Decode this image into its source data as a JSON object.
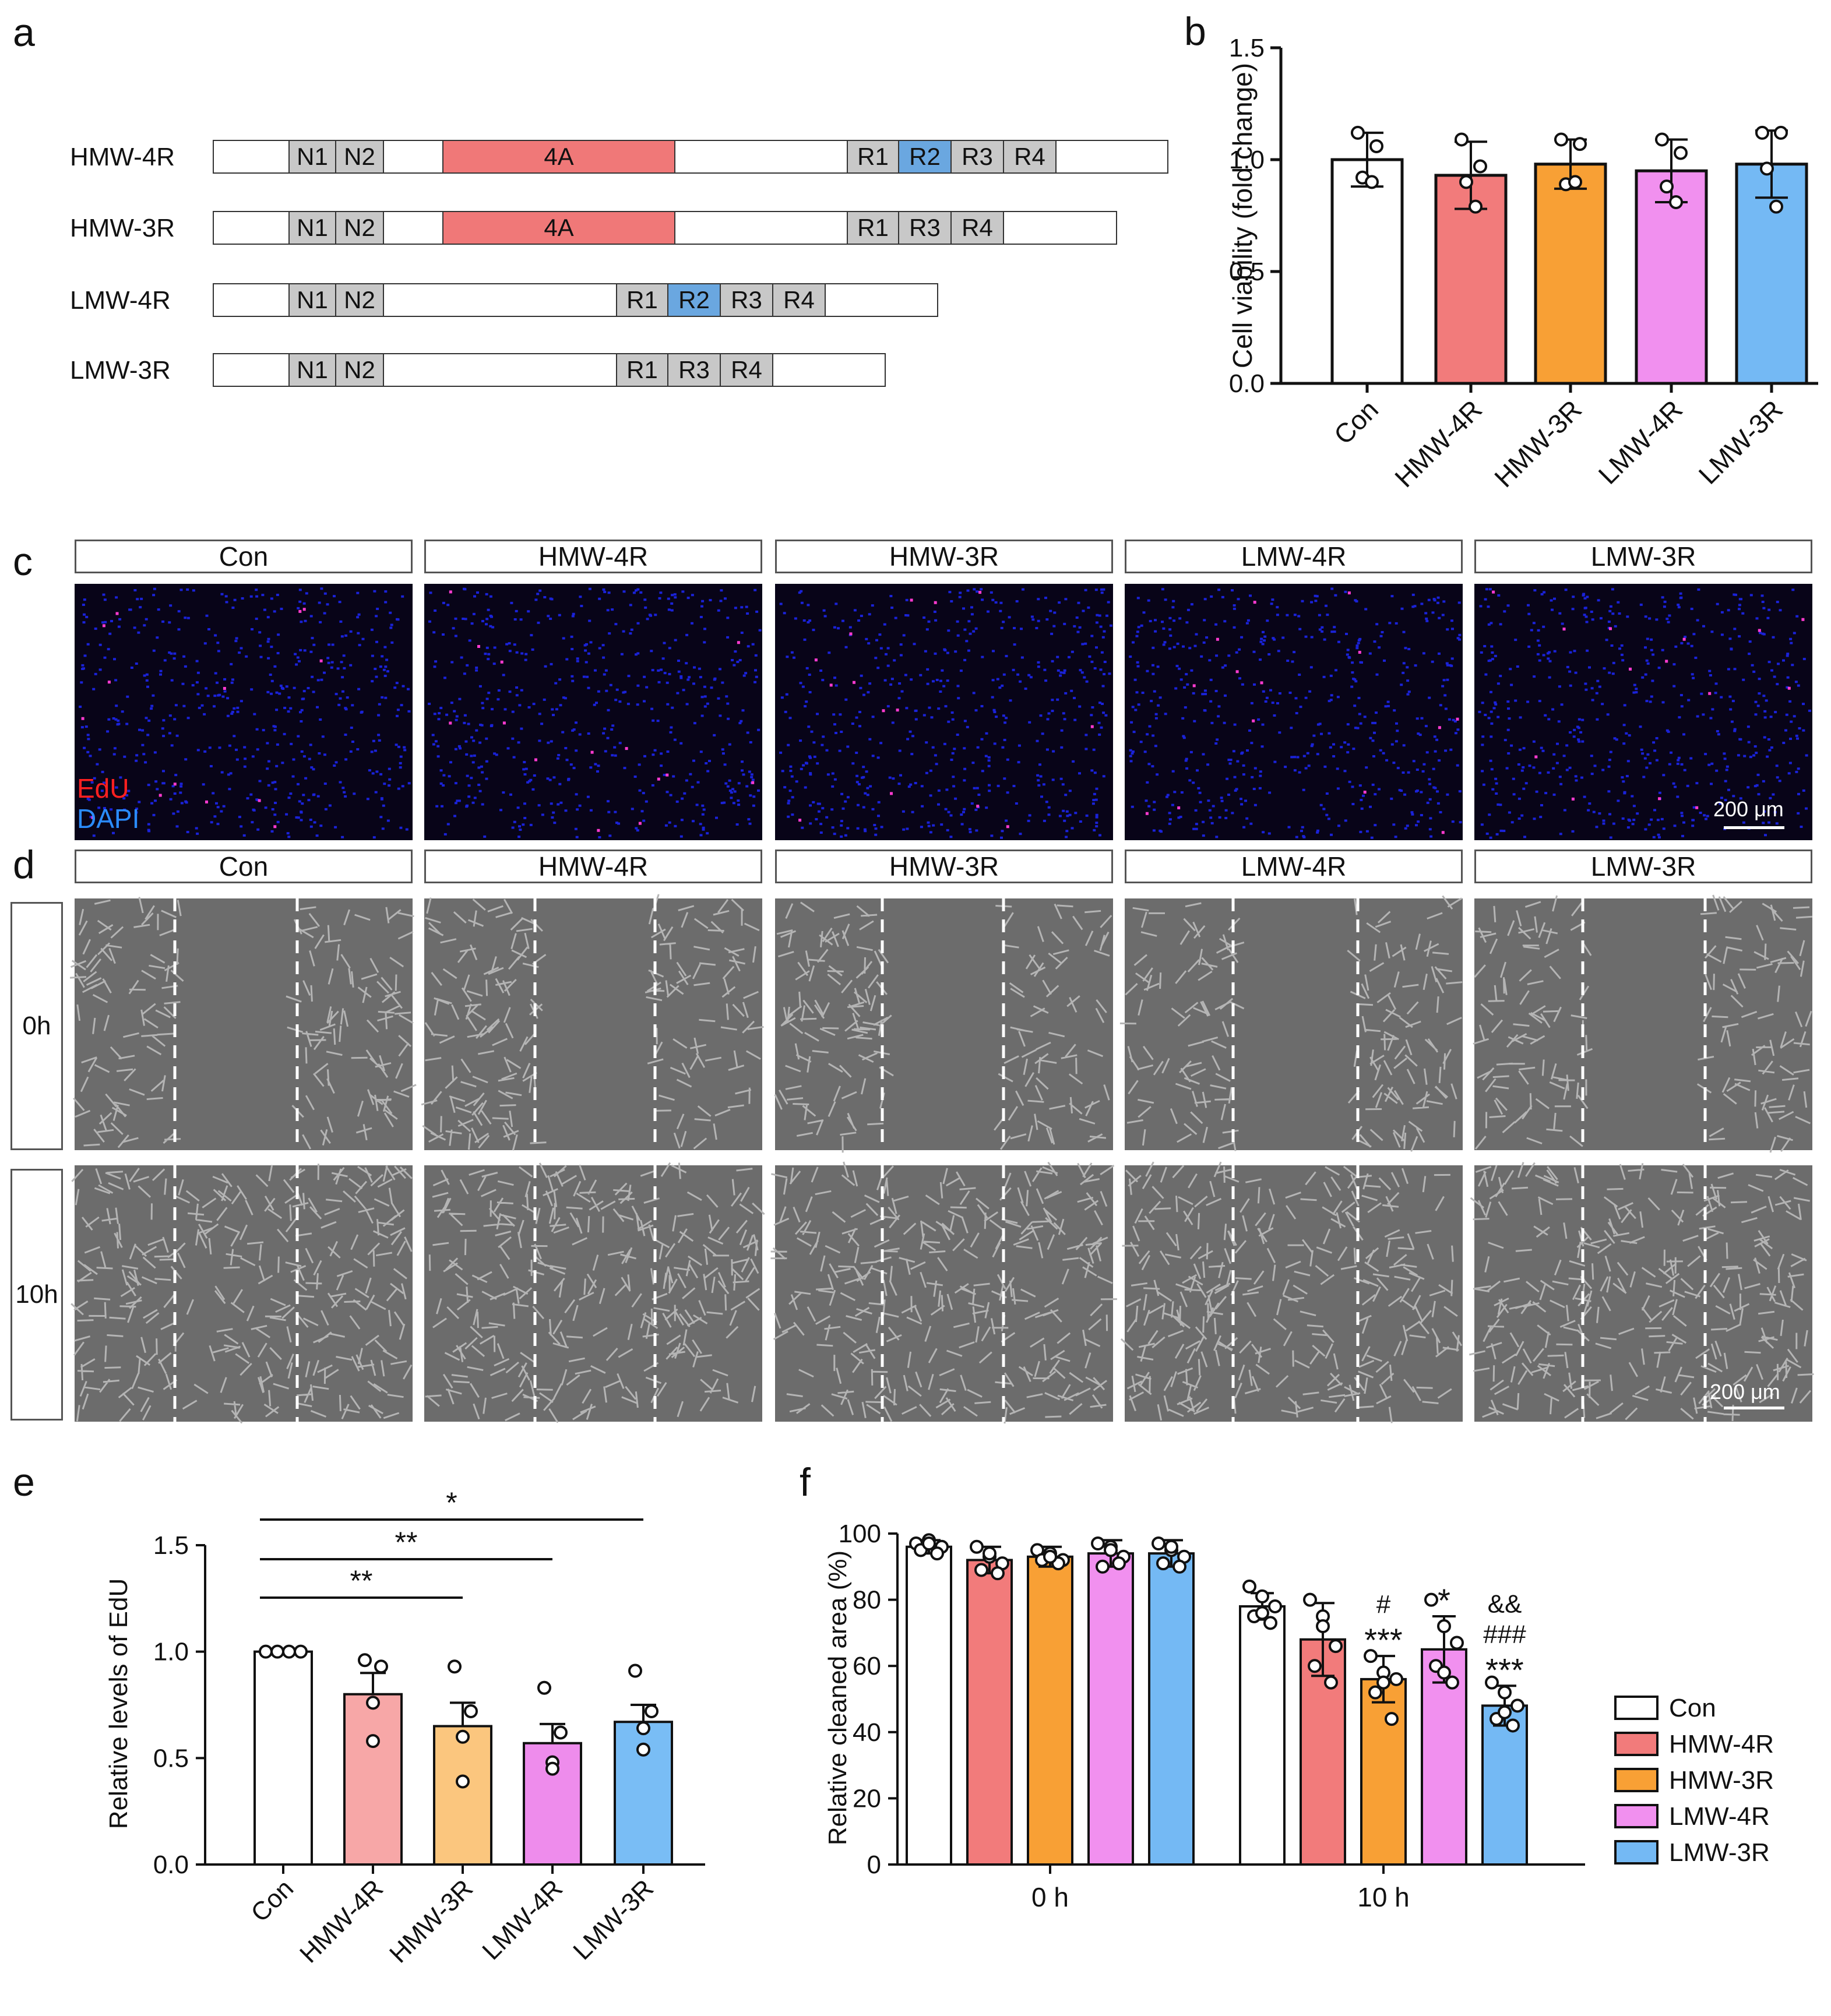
{
  "panel_letters": {
    "a": "a",
    "b": "b",
    "c": "c",
    "d": "d",
    "e": "e",
    "f": "f"
  },
  "colors": {
    "con": "#ffffff",
    "hmw4r": "#f27b7b",
    "hmw3r": "#f8a035",
    "lmw4r": "#f190ef",
    "lmw3r": "#74b9f4",
    "hmw4r_e": "#f7a7a7",
    "hmw3r_e": "#fbc67e",
    "lmw4r_e": "#ee8cec",
    "lmw3r_e": "#79bdf5",
    "domain_grey": "#c8c8c8",
    "domain_blue": "#6aa7e0",
    "domain_red": "#f07878"
  },
  "schema": {
    "rows": [
      {
        "label": "HMW-4R",
        "n1": "N1",
        "n2": "N2",
        "insert": "4A",
        "repeats": [
          "R1",
          "R2",
          "R3",
          "R4"
        ]
      },
      {
        "label": "HMW-3R",
        "n1": "N1",
        "n2": "N2",
        "insert": "4A",
        "repeats": [
          "R1",
          "R3",
          "R4"
        ]
      },
      {
        "label": "LMW-4R",
        "n1": "N1",
        "n2": "N2",
        "repeats": [
          "R1",
          "R2",
          "R3",
          "R4"
        ]
      },
      {
        "label": "LMW-3R",
        "n1": "N1",
        "n2": "N2",
        "repeats": [
          "R1",
          "R3",
          "R4"
        ]
      }
    ]
  },
  "conditions": [
    "Con",
    "HMW-4R",
    "HMW-3R",
    "LMW-4R",
    "LMW-3R"
  ],
  "edu_labels": {
    "edu": "EdU",
    "dapi": "DAPI",
    "scale": "200 μm"
  },
  "wound": {
    "times": [
      "0h",
      "10h"
    ],
    "scale": "200 μm"
  },
  "chart_data": [
    {
      "panel": "b",
      "type": "bar",
      "ylabel": "Cell viability (fold change)",
      "categories": [
        "Con",
        "HMW-4R",
        "HMW-3R",
        "LMW-4R",
        "LMW-3R"
      ],
      "values": [
        1.0,
        0.93,
        0.98,
        0.95,
        0.98
      ],
      "sd": [
        0.12,
        0.15,
        0.11,
        0.14,
        0.15
      ],
      "points": [
        [
          1.12,
          1.06,
          0.92,
          0.9
        ],
        [
          1.09,
          0.97,
          0.9,
          0.79
        ],
        [
          1.09,
          1.07,
          0.89,
          0.9
        ],
        [
          1.09,
          1.03,
          0.88,
          0.81
        ],
        [
          1.12,
          1.12,
          0.96,
          0.79
        ]
      ],
      "ylim": [
        0,
        1.5
      ],
      "yticks": [
        "0.0",
        "0.5",
        "1.0",
        "1.5"
      ]
    },
    {
      "panel": "e",
      "type": "bar",
      "ylabel": "Relative levels of EdU",
      "categories": [
        "Con",
        "HMW-4R",
        "HMW-3R",
        "LMW-4R",
        "LMW-3R"
      ],
      "values": [
        1.0,
        0.8,
        0.65,
        0.57,
        0.67
      ],
      "sem": [
        0,
        0.1,
        0.11,
        0.09,
        0.08
      ],
      "points": [
        [
          1.0,
          1.0,
          1.0,
          1.0
        ],
        [
          0.96,
          0.93,
          0.76,
          0.58
        ],
        [
          0.93,
          0.72,
          0.6,
          0.39
        ],
        [
          0.83,
          0.62,
          0.48,
          0.45
        ],
        [
          0.91,
          0.72,
          0.64,
          0.54
        ]
      ],
      "ylim": [
        0,
        1.5
      ],
      "yticks": [
        "0.0",
        "0.5",
        "1.0",
        "1.5"
      ],
      "brackets": [
        {
          "from": 0,
          "to": 2,
          "label": "**"
        },
        {
          "from": 0,
          "to": 3,
          "label": "**"
        },
        {
          "from": 0,
          "to": 4,
          "label": "*"
        }
      ]
    },
    {
      "panel": "f",
      "type": "bar",
      "ylabel": "Relative cleaned area (%)",
      "groups": [
        "0 h",
        "10 h"
      ],
      "series": [
        {
          "name": "Con",
          "values": [
            96,
            78
          ],
          "sd": [
            2,
            4
          ],
          "points": [
            [
              97,
              98,
              96,
              95,
              94,
              97
            ],
            [
              84,
              81,
              78,
              75,
              73,
              76
            ]
          ],
          "marks": ""
        },
        {
          "name": "HMW-4R",
          "values": [
            92,
            68
          ],
          "sd": [
            4,
            11
          ],
          "points": [
            [
              96,
              93,
              91,
              89,
              88,
              94
            ],
            [
              80,
              75,
              66,
              60,
              55,
              72
            ]
          ],
          "marks": ""
        },
        {
          "name": "HMW-3R",
          "values": [
            93,
            56
          ],
          "sd": [
            3,
            7
          ],
          "points": [
            [
              95,
              94,
              92,
              92,
              91,
              93
            ],
            [
              63,
              58,
              56,
              52,
              44,
              55
            ]
          ],
          "marks": "#\n***"
        },
        {
          "name": "LMW-4R",
          "values": [
            94,
            65
          ],
          "sd": [
            4,
            10
          ],
          "points": [
            [
              97,
              96,
              93,
              90,
              91,
              95
            ],
            [
              80,
              72,
              67,
              60,
              55,
              58
            ]
          ],
          "marks": "*"
        },
        {
          "name": "LMW-3R",
          "values": [
            94,
            48
          ],
          "sd": [
            4,
            6
          ],
          "points": [
            [
              97,
              95,
              93,
              91,
              90,
              96
            ],
            [
              55,
              52,
              48,
              44,
              42,
              46
            ]
          ],
          "marks": "&&\n###\n***"
        }
      ],
      "ylim": [
        0,
        100
      ],
      "yticks": [
        "0",
        "20",
        "40",
        "60",
        "80",
        "100"
      ],
      "legend_position": "right"
    }
  ]
}
